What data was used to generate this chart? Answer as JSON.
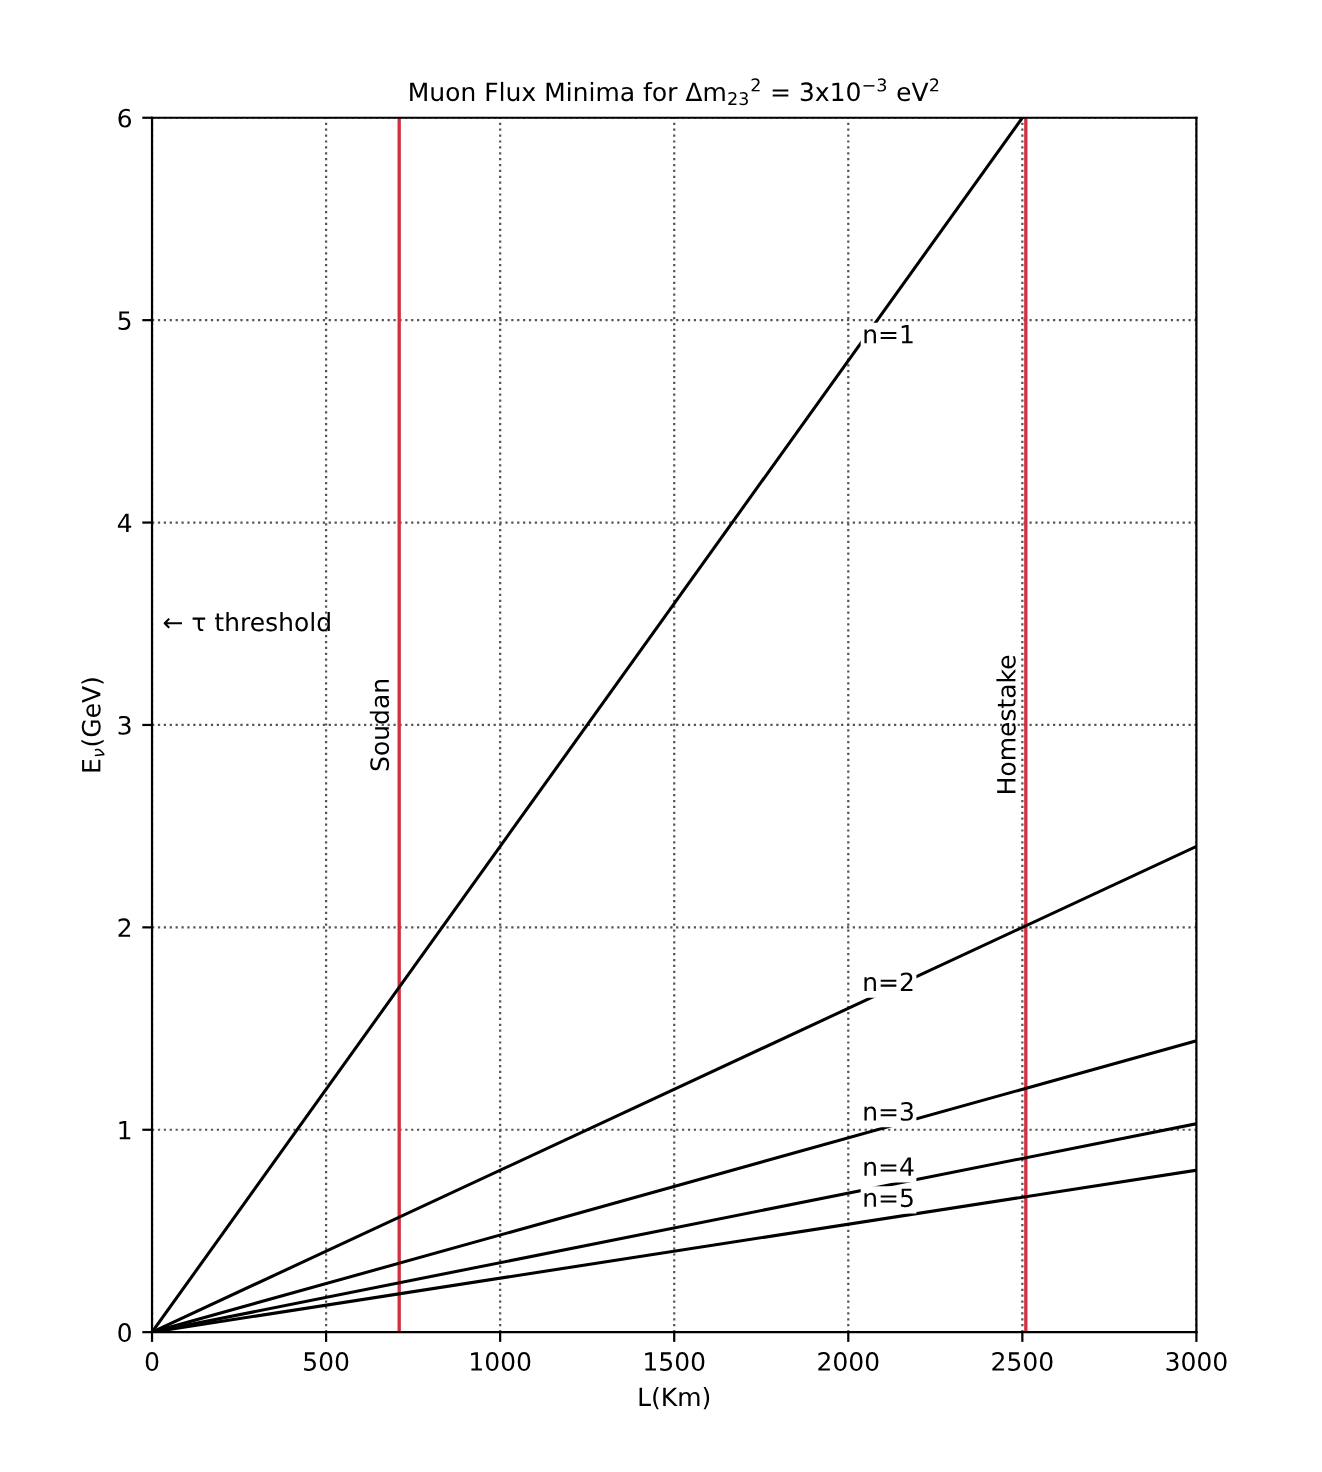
{
  "chart_data": {
    "type": "line",
    "title": "Muon Flux Minima for Δm$_{23}$$^{2}$ = 3x10$^{−3}$ eV$^{2}$",
    "xlabel": "L(Km)",
    "ylabel": "E$_{ν}$(GeV)",
    "series": [
      {
        "name": "n=1",
        "color": "#000000",
        "x": [
          0,
          2500
        ],
        "values": [
          0,
          6
        ]
      },
      {
        "name": "n=2",
        "color": "#000000",
        "x": [
          0,
          3000
        ],
        "values": [
          0,
          2.4
        ]
      },
      {
        "name": "n=3",
        "color": "#000000",
        "x": [
          0,
          3000
        ],
        "values": [
          0,
          1.44
        ]
      },
      {
        "name": "n=4",
        "color": "#000000",
        "x": [
          0,
          3000
        ],
        "values": [
          0,
          1.03
        ]
      },
      {
        "name": "n=5",
        "color": "#000000",
        "x": [
          0,
          3000
        ],
        "values": [
          0,
          0.8
        ]
      }
    ],
    "ref_lines": [
      {
        "axis": "x",
        "value": 710,
        "label": "Soudan",
        "color": "#d03040"
      },
      {
        "axis": "x",
        "value": 2510,
        "label": "Homestake",
        "color": "#d03040"
      }
    ],
    "annotations": [
      "← τ threshold"
    ],
    "xlim": [
      0,
      3000
    ],
    "ylim": [
      0,
      6
    ],
    "xticks": [
      0,
      500,
      1000,
      1500,
      2000,
      2500,
      3000
    ],
    "yticks": [
      0,
      1,
      2,
      3,
      4,
      5,
      6
    ],
    "grid": true,
    "line_style": "solid",
    "marker": "none",
    "legend": false
  }
}
